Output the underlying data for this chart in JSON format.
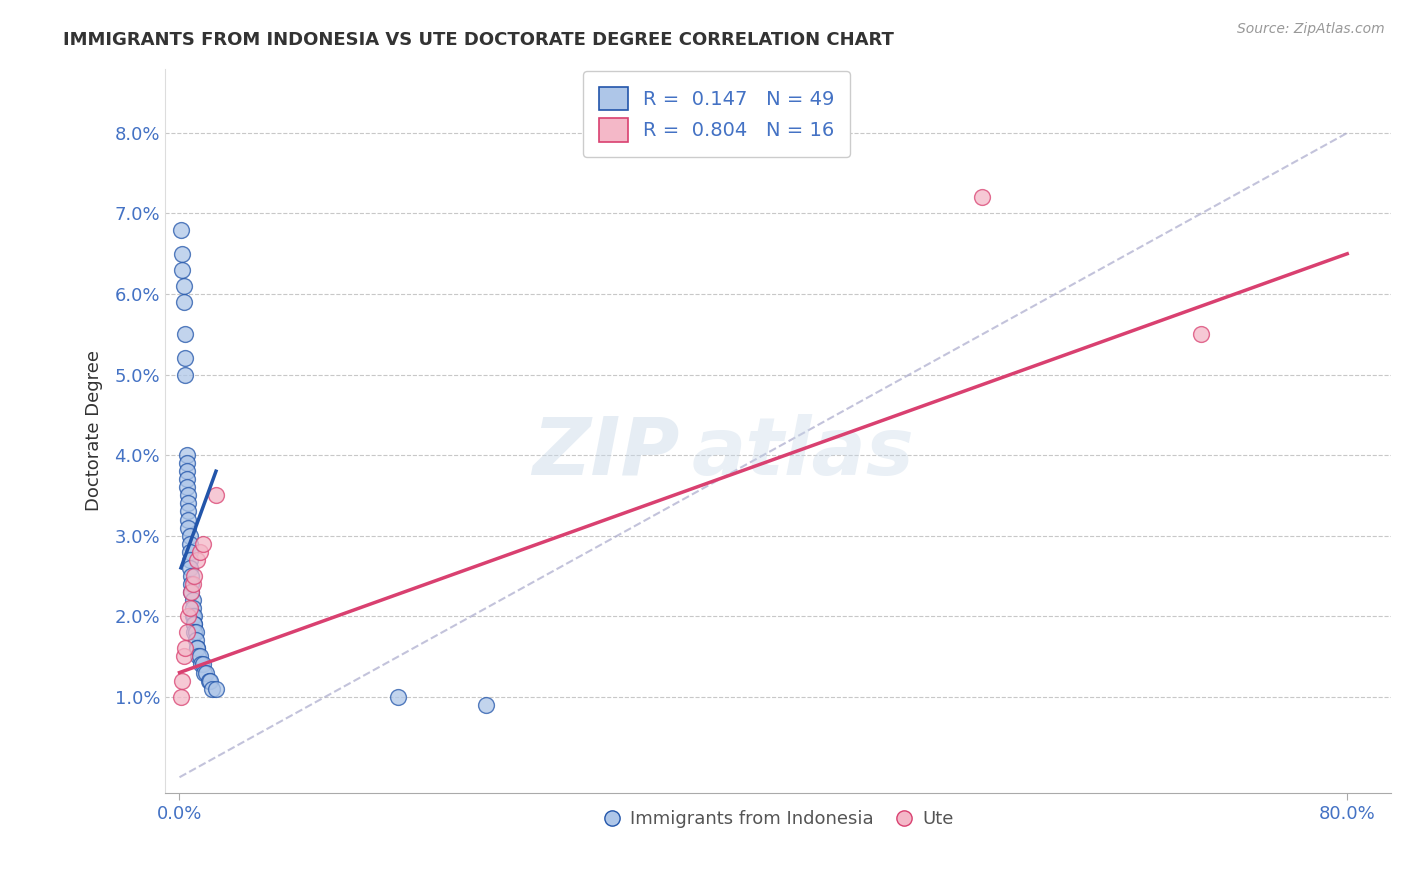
{
  "title": "IMMIGRANTS FROM INDONESIA VS UTE DOCTORATE DEGREE CORRELATION CHART",
  "source": "Source: ZipAtlas.com",
  "ylabel": "Doctorate Degree",
  "watermark": "ZIPatlas",
  "blue_r": 0.147,
  "blue_n": 49,
  "pink_r": 0.804,
  "pink_n": 16,
  "blue_color": "#aec6e8",
  "pink_color": "#f4b8c8",
  "blue_line_color": "#2255aa",
  "pink_line_color": "#d94070",
  "legend_blue_color": "#aec6e8",
  "legend_pink_color": "#f4b8c8",
  "blue_scatter_x": [
    0.001,
    0.002,
    0.002,
    0.003,
    0.003,
    0.004,
    0.004,
    0.004,
    0.005,
    0.005,
    0.005,
    0.005,
    0.005,
    0.006,
    0.006,
    0.006,
    0.006,
    0.006,
    0.007,
    0.007,
    0.007,
    0.007,
    0.007,
    0.008,
    0.008,
    0.008,
    0.009,
    0.009,
    0.009,
    0.01,
    0.01,
    0.01,
    0.01,
    0.011,
    0.011,
    0.012,
    0.012,
    0.013,
    0.014,
    0.015,
    0.016,
    0.017,
    0.018,
    0.02,
    0.021,
    0.022,
    0.025,
    0.15,
    0.21
  ],
  "blue_scatter_y": [
    0.068,
    0.065,
    0.063,
    0.061,
    0.059,
    0.055,
    0.052,
    0.05,
    0.04,
    0.039,
    0.038,
    0.037,
    0.036,
    0.035,
    0.034,
    0.033,
    0.032,
    0.031,
    0.03,
    0.029,
    0.028,
    0.027,
    0.026,
    0.025,
    0.024,
    0.023,
    0.022,
    0.021,
    0.02,
    0.02,
    0.019,
    0.019,
    0.018,
    0.018,
    0.017,
    0.016,
    0.016,
    0.015,
    0.015,
    0.014,
    0.014,
    0.013,
    0.013,
    0.012,
    0.012,
    0.011,
    0.011,
    0.01,
    0.009
  ],
  "pink_scatter_x": [
    0.001,
    0.002,
    0.003,
    0.004,
    0.005,
    0.006,
    0.007,
    0.008,
    0.009,
    0.01,
    0.012,
    0.014,
    0.016,
    0.025,
    0.55,
    0.7
  ],
  "pink_scatter_y": [
    0.01,
    0.012,
    0.015,
    0.016,
    0.018,
    0.02,
    0.021,
    0.023,
    0.024,
    0.025,
    0.027,
    0.028,
    0.029,
    0.035,
    0.072,
    0.055
  ],
  "blue_line_x_start": 0.001,
  "blue_line_x_end": 0.025,
  "blue_line_y_start": 0.026,
  "blue_line_y_end": 0.038,
  "pink_line_x_start": 0.0,
  "pink_line_x_end": 0.8,
  "pink_line_y_start": 0.013,
  "pink_line_y_end": 0.065,
  "diag_line_x_start": 0.0,
  "diag_line_x_end": 0.8,
  "diag_line_y_start": 0.0,
  "diag_line_y_end": 0.08,
  "legend_label_blue": "Immigrants from Indonesia",
  "legend_label_pink": "Ute",
  "bg_color": "#ffffff",
  "grid_color": "#c8c8c8",
  "title_color": "#333333",
  "tick_color": "#4472c4",
  "ylabel_color": "#333333",
  "xlim": [
    -0.01,
    0.83
  ],
  "ylim": [
    -0.002,
    0.088
  ],
  "x_tick_positions": [
    0.0,
    0.8
  ],
  "x_tick_labels": [
    "0.0%",
    "80.0%"
  ],
  "y_tick_positions": [
    0.01,
    0.02,
    0.03,
    0.04,
    0.05,
    0.06,
    0.07,
    0.08
  ],
  "y_tick_labels": [
    "1.0%",
    "2.0%",
    "3.0%",
    "4.0%",
    "5.0%",
    "6.0%",
    "7.0%",
    "8.0%"
  ]
}
